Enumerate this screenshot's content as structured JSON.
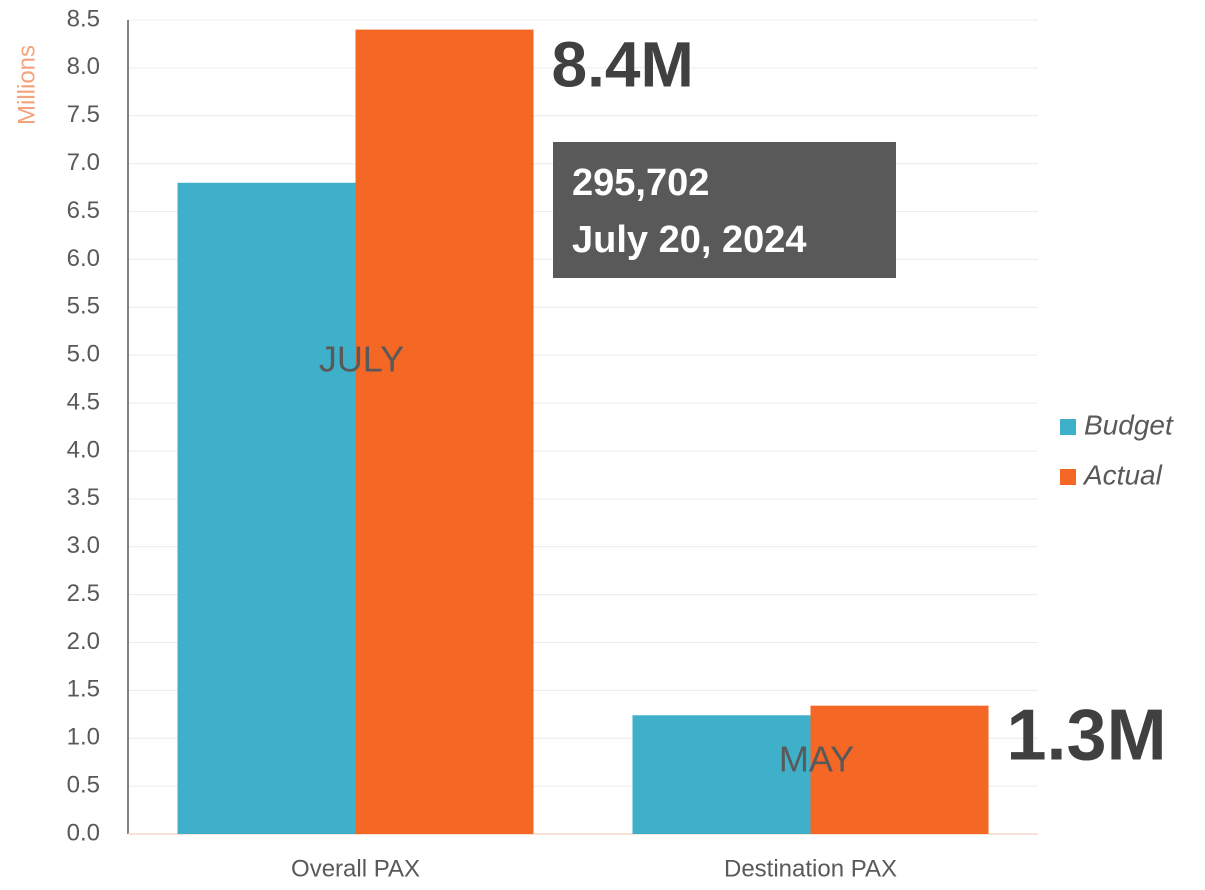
{
  "chart_data": {
    "type": "bar",
    "y_label": "Millions",
    "categories": [
      "Overall PAX",
      "Destination PAX"
    ],
    "series": [
      {
        "name": "Budget",
        "color": "#3fb0c9",
        "values": [
          6.8,
          1.24
        ]
      },
      {
        "name": "Actual",
        "color": "#f46725",
        "values": [
          8.4,
          1.34
        ],
        "value_labels": [
          "8.4M",
          "1.3M"
        ]
      }
    ],
    "ylim": [
      0,
      8.5
    ],
    "yticks": [
      {
        "value": 0,
        "label": "0.0"
      },
      0.5,
      {
        "value": 1,
        "label": "1.0"
      },
      1.5,
      {
        "value": 2,
        "label": "2.0"
      },
      2.5,
      {
        "value": 3,
        "label": "3.0"
      },
      3.5,
      {
        "value": 4,
        "label": "4.0"
      },
      4.5,
      {
        "value": 5,
        "label": "5.0"
      },
      5.5,
      {
        "value": 6,
        "label": "6.0"
      },
      6.5,
      {
        "value": 7,
        "label": "7.0"
      },
      7.5,
      {
        "value": 8,
        "label": "8.0"
      },
      8.5
    ],
    "grid": true,
    "legend": "right",
    "bar_annotations": [
      "JULY",
      "MAY"
    ],
    "callout": [
      "295,702",
      "July 20, 2024"
    ]
  }
}
